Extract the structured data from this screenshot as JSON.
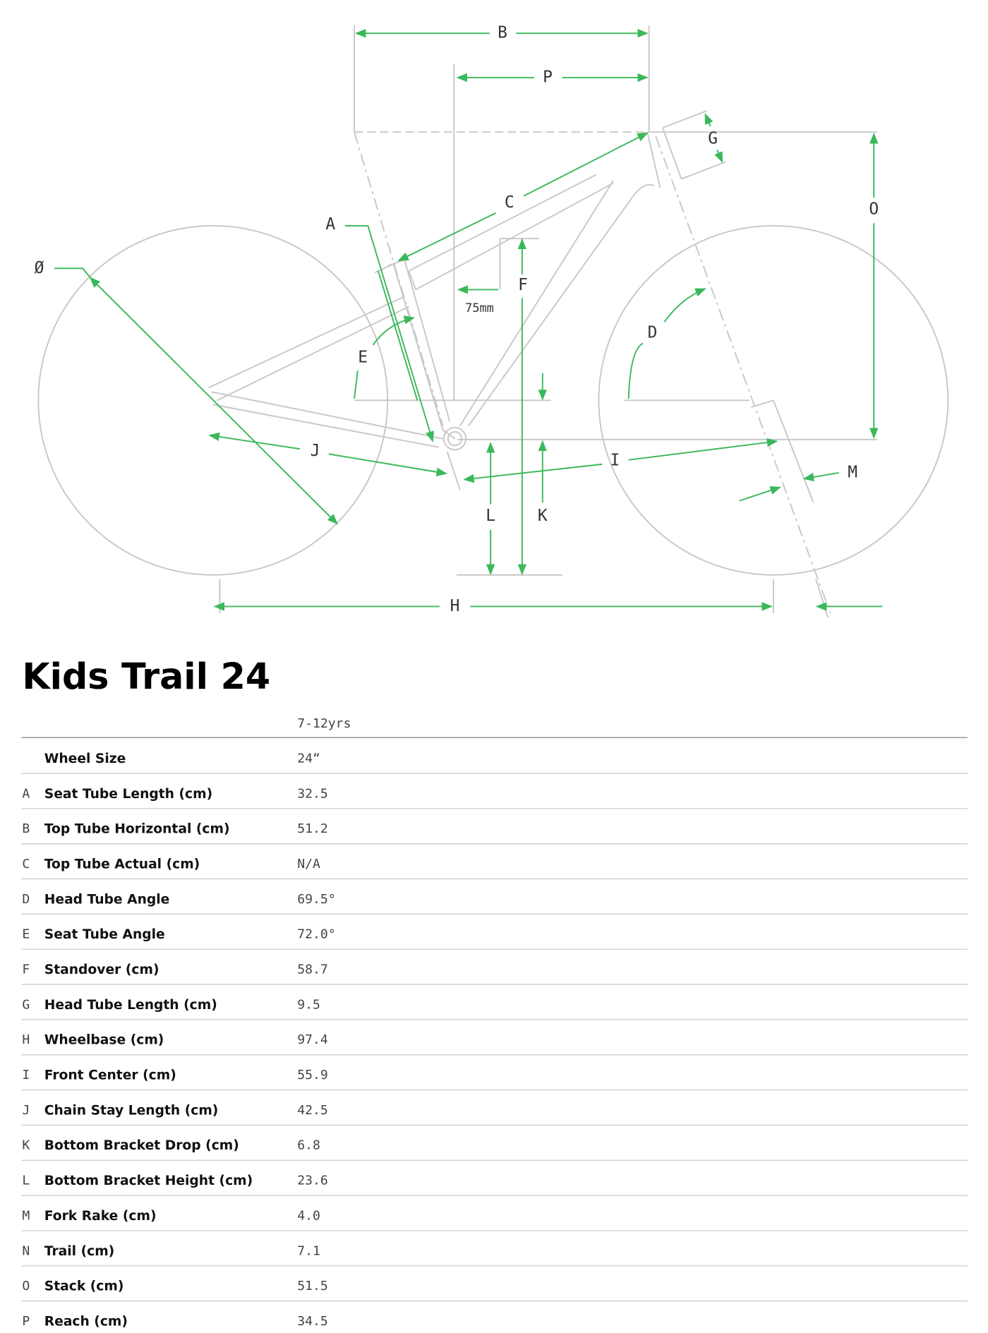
{
  "diagram": {
    "labels": [
      "B",
      "P",
      "G",
      "C",
      "O",
      "A",
      "Ø",
      "F",
      "75mm",
      "D",
      "E",
      "J",
      "I",
      "M",
      "L",
      "K",
      "H"
    ]
  },
  "title": "Kids Trail 24",
  "table": {
    "header": "7-12yrs",
    "rows": [
      {
        "name": "Wheel Size",
        "value": "24“"
      },
      {
        "letter": "A",
        "name": "Seat Tube Length (cm)",
        "value": "32.5"
      },
      {
        "letter": "B",
        "name": "Top Tube Horizontal (cm)",
        "value": "51.2"
      },
      {
        "letter": "C",
        "name": "Top Tube Actual (cm)",
        "value": "N/A"
      },
      {
        "letter": "D",
        "name": "Head Tube Angle",
        "value": "69.5°"
      },
      {
        "letter": "E",
        "name": "Seat Tube Angle",
        "value": "72.0°"
      },
      {
        "letter": "F",
        "name": "Standover (cm)",
        "value": "58.7"
      },
      {
        "letter": "G",
        "name": "Head Tube Length (cm)",
        "value": "9.5"
      },
      {
        "letter": "H",
        "name": "Wheelbase (cm)",
        "value": "97.4"
      },
      {
        "letter": "I",
        "name": "Front Center (cm)",
        "value": "55.9"
      },
      {
        "letter": "J",
        "name": "Chain Stay Length (cm)",
        "value": "42.5"
      },
      {
        "letter": "K",
        "name": "Bottom Bracket Drop (cm)",
        "value": "6.8"
      },
      {
        "letter": "L",
        "name": "Bottom Bracket Height (cm)",
        "value": "23.6"
      },
      {
        "letter": "M",
        "name": "Fork Rake (cm)",
        "value": "4.0"
      },
      {
        "letter": "N",
        "name": "Trail (cm)",
        "value": "7.1"
      },
      {
        "letter": "O",
        "name": "Stack (cm)",
        "value": "51.5"
      },
      {
        "letter": "P",
        "name": "Reach (cm)",
        "value": "34.5"
      }
    ]
  }
}
